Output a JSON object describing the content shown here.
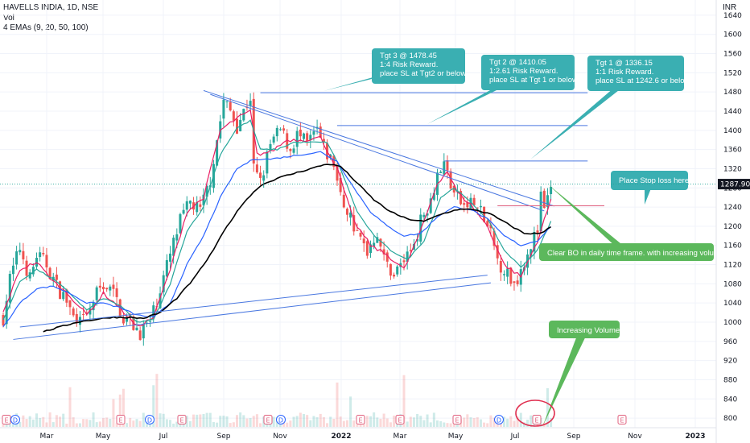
{
  "header": {
    "symbol_line": "HAVELLS INDIA, 1D, NSE",
    "vol_label": "Vol",
    "ema_label": "4 EMAs (9, 20, 50, 100)",
    "currency": "INR"
  },
  "chart_data": {
    "type": "candlestick",
    "symbol": "HAVELLS INDIA",
    "interval": "1D",
    "exchange": "NSE",
    "currency": "INR",
    "y_axis": {
      "range": [
        780,
        1660
      ],
      "ticks": [
        800,
        840,
        880,
        920,
        960,
        1000,
        1040,
        1080,
        1120,
        1160,
        1200,
        1240,
        1280,
        1320,
        1360,
        1400,
        1440,
        1480,
        1520,
        1560,
        1600,
        1640
      ]
    },
    "x_axis": {
      "ticks": [
        "Mar",
        "May",
        "Jul",
        "Sep",
        "Nov",
        "2022",
        "Mar",
        "May",
        "Jul",
        "Sep",
        "Nov",
        "2023"
      ]
    },
    "last_price": "1287.90",
    "close_path": [
      [
        0,
        1010
      ],
      [
        2,
        1090
      ],
      [
        5,
        1155
      ],
      [
        8,
        1090
      ],
      [
        10,
        1140
      ],
      [
        13,
        1120
      ],
      [
        16,
        1075
      ],
      [
        19,
        1045
      ],
      [
        22,
        990
      ],
      [
        25,
        1010
      ],
      [
        28,
        1060
      ],
      [
        30,
        1080
      ],
      [
        33,
        1060
      ],
      [
        36,
        1010
      ],
      [
        38,
        1000
      ],
      [
        41,
        980
      ],
      [
        44,
        1000
      ],
      [
        47,
        1070
      ],
      [
        50,
        1140
      ],
      [
        53,
        1210
      ],
      [
        56,
        1250
      ],
      [
        59,
        1230
      ],
      [
        62,
        1300
      ],
      [
        64,
        1380
      ],
      [
        66,
        1460
      ],
      [
        68,
        1440
      ],
      [
        70,
        1410
      ],
      [
        72,
        1440
      ],
      [
        74,
        1470
      ],
      [
        75,
        1320
      ],
      [
        77,
        1290
      ],
      [
        80,
        1370
      ],
      [
        83,
        1400
      ],
      [
        86,
        1360
      ],
      [
        88,
        1390
      ],
      [
        91,
        1370
      ],
      [
        94,
        1400
      ],
      [
        96,
        1360
      ],
      [
        99,
        1330
      ],
      [
        101,
        1260
      ],
      [
        104,
        1220
      ],
      [
        106,
        1180
      ],
      [
        109,
        1150
      ],
      [
        112,
        1190
      ],
      [
        114,
        1130
      ],
      [
        117,
        1100
      ],
      [
        119,
        1120
      ],
      [
        122,
        1150
      ],
      [
        125,
        1210
      ],
      [
        128,
        1260
      ],
      [
        130,
        1310
      ],
      [
        132,
        1330
      ],
      [
        135,
        1270
      ],
      [
        138,
        1240
      ],
      [
        140,
        1250
      ],
      [
        143,
        1230
      ],
      [
        146,
        1180
      ],
      [
        148,
        1130
      ],
      [
        151,
        1100
      ],
      [
        153,
        1080
      ],
      [
        155,
        1110
      ],
      [
        157,
        1150
      ],
      [
        160,
        1190
      ],
      [
        161,
        1260
      ],
      [
        162,
        1230
      ],
      [
        163,
        1250
      ],
      [
        164,
        1287.9
      ]
    ],
    "emas": [
      {
        "name": "EMA 9",
        "color": "#e91e63",
        "path": [
          [
            0,
            1020
          ],
          [
            5,
            1110
          ],
          [
            10,
            1125
          ],
          [
            15,
            1085
          ],
          [
            20,
            1055
          ],
          [
            25,
            1015
          ],
          [
            30,
            1060
          ],
          [
            35,
            1030
          ],
          [
            40,
            990
          ],
          [
            45,
            1010
          ],
          [
            50,
            1110
          ],
          [
            55,
            1230
          ],
          [
            60,
            1260
          ],
          [
            65,
            1400
          ],
          [
            70,
            1425
          ],
          [
            74,
            1440
          ],
          [
            76,
            1350
          ],
          [
            80,
            1355
          ],
          [
            85,
            1380
          ],
          [
            90,
            1380
          ],
          [
            95,
            1385
          ],
          [
            100,
            1320
          ],
          [
            105,
            1210
          ],
          [
            110,
            1160
          ],
          [
            115,
            1140
          ],
          [
            120,
            1110
          ],
          [
            125,
            1190
          ],
          [
            130,
            1290
          ],
          [
            133,
            1315
          ],
          [
            136,
            1270
          ],
          [
            140,
            1245
          ],
          [
            145,
            1200
          ],
          [
            150,
            1120
          ],
          [
            155,
            1095
          ],
          [
            160,
            1170
          ],
          [
            164,
            1255
          ]
        ]
      },
      {
        "name": "EMA 20",
        "color": "#26a69a",
        "path": [
          [
            0,
            1005
          ],
          [
            5,
            1085
          ],
          [
            10,
            1110
          ],
          [
            15,
            1090
          ],
          [
            20,
            1060
          ],
          [
            25,
            1025
          ],
          [
            30,
            1050
          ],
          [
            35,
            1035
          ],
          [
            40,
            1000
          ],
          [
            45,
            1005
          ],
          [
            50,
            1080
          ],
          [
            55,
            1190
          ],
          [
            60,
            1240
          ],
          [
            65,
            1350
          ],
          [
            70,
            1405
          ],
          [
            74,
            1420
          ],
          [
            77,
            1360
          ],
          [
            82,
            1360
          ],
          [
            87,
            1375
          ],
          [
            92,
            1375
          ],
          [
            97,
            1375
          ],
          [
            101,
            1320
          ],
          [
            106,
            1230
          ],
          [
            111,
            1180
          ],
          [
            116,
            1150
          ],
          [
            121,
            1130
          ],
          [
            126,
            1170
          ],
          [
            131,
            1260
          ],
          [
            135,
            1280
          ],
          [
            140,
            1250
          ],
          [
            145,
            1215
          ],
          [
            150,
            1150
          ],
          [
            155,
            1115
          ],
          [
            160,
            1150
          ],
          [
            164,
            1210
          ]
        ]
      },
      {
        "name": "EMA 50",
        "color": "#2962ff",
        "path": [
          [
            0,
            990
          ],
          [
            5,
            1040
          ],
          [
            10,
            1070
          ],
          [
            15,
            1075
          ],
          [
            20,
            1060
          ],
          [
            25,
            1040
          ],
          [
            30,
            1040
          ],
          [
            35,
            1030
          ],
          [
            40,
            1015
          ],
          [
            45,
            1010
          ],
          [
            50,
            1040
          ],
          [
            55,
            1120
          ],
          [
            60,
            1180
          ],
          [
            65,
            1260
          ],
          [
            70,
            1320
          ],
          [
            75,
            1340
          ],
          [
            80,
            1340
          ],
          [
            85,
            1345
          ],
          [
            90,
            1350
          ],
          [
            95,
            1355
          ],
          [
            100,
            1335
          ],
          [
            105,
            1280
          ],
          [
            110,
            1230
          ],
          [
            115,
            1200
          ],
          [
            120,
            1180
          ],
          [
            125,
            1185
          ],
          [
            130,
            1220
          ],
          [
            135,
            1240
          ],
          [
            140,
            1235
          ],
          [
            145,
            1215
          ],
          [
            150,
            1180
          ],
          [
            155,
            1160
          ],
          [
            160,
            1170
          ],
          [
            164,
            1200
          ]
        ]
      },
      {
        "name": "EMA 100",
        "color": "#000000",
        "path": [
          [
            12,
            980
          ],
          [
            17,
            990
          ],
          [
            22,
            1000
          ],
          [
            27,
            1005
          ],
          [
            32,
            1010
          ],
          [
            37,
            1010
          ],
          [
            42,
            1008
          ],
          [
            47,
            1020
          ],
          [
            52,
            1050
          ],
          [
            57,
            1090
          ],
          [
            62,
            1140
          ],
          [
            67,
            1200
          ],
          [
            72,
            1250
          ],
          [
            77,
            1285
          ],
          [
            82,
            1300
          ],
          [
            87,
            1310
          ],
          [
            92,
            1320
          ],
          [
            97,
            1330
          ],
          [
            101,
            1325
          ],
          [
            106,
            1290
          ],
          [
            111,
            1255
          ],
          [
            116,
            1230
          ],
          [
            121,
            1215
          ],
          [
            126,
            1210
          ],
          [
            131,
            1225
          ],
          [
            136,
            1235
          ],
          [
            141,
            1235
          ],
          [
            146,
            1225
          ],
          [
            151,
            1205
          ],
          [
            156,
            1185
          ],
          [
            161,
            1185
          ],
          [
            164,
            1200
          ]
        ]
      }
    ],
    "trendlines": [
      {
        "name": "lower-1",
        "from": [
          3,
          964
        ],
        "to": [
          146,
          1082
        ],
        "color": "#4a78e0"
      },
      {
        "name": "lower-2",
        "from": [
          5,
          990
        ],
        "to": [
          145,
          1098
        ],
        "color": "#4a78e0"
      },
      {
        "name": "upper-1",
        "from": [
          60,
          1483
        ],
        "to": [
          165,
          1242
        ],
        "color": "#4a78e0"
      },
      {
        "name": "upper-2",
        "from": [
          62,
          1475
        ],
        "to": [
          162,
          1232
        ],
        "color": "#4a78e0"
      },
      {
        "name": "tgt3",
        "price": 1478.45,
        "from": 77,
        "to": 175,
        "color": "#4a78e0"
      },
      {
        "name": "tgt2",
        "price": 1410.05,
        "from": 100,
        "to": 175,
        "color": "#4a78e0"
      },
      {
        "name": "tgt1",
        "price": 1336.15,
        "from": 132,
        "to": 175,
        "color": "#4a78e0"
      },
      {
        "name": "stop",
        "price": 1242.6,
        "from": 148,
        "to": 180,
        "color": "#e0607e"
      }
    ],
    "annotations": [
      {
        "text": "Tgt 3 @ 1478.45\n   1:4 Risk Reward.\n   place SL at Tgt2 or below",
        "color": "#3aafb2"
      },
      {
        "text": "Tgt 2 @ 1410.05\n   1:2.61 Risk Reward.\n   place SL at Tgt 1 or below",
        "color": "#3aafb2"
      },
      {
        "text": "Tgt 1 @ 1336.15\n   1:1 Risk Reward.\n   place SL at 1242.6 or below",
        "color": "#3aafb2"
      },
      {
        "text": "Place Stop loss here",
        "color": "#3aafb2"
      },
      {
        "text": "Clear BO in daily time frame. with increasing volume",
        "color": "#5cb85c"
      },
      {
        "text": "Increasing Volume",
        "color": "#5cb85c"
      }
    ],
    "event_markers": [
      {
        "label": "E",
        "kind": "earnings"
      },
      {
        "label": "D",
        "kind": "dividend"
      },
      {
        "label": "E",
        "kind": "earnings"
      },
      {
        "label": "D",
        "kind": "dividend"
      },
      {
        "label": "E",
        "kind": "earnings"
      },
      {
        "label": "E",
        "kind": "earnings"
      },
      {
        "label": "D",
        "kind": "dividend"
      },
      {
        "label": "E",
        "kind": "earnings"
      },
      {
        "label": "E",
        "kind": "earnings"
      },
      {
        "label": "E",
        "kind": "earnings"
      },
      {
        "label": "D",
        "kind": "dividend"
      },
      {
        "label": "E",
        "kind": "earnings"
      },
      {
        "label": "E",
        "kind": "earnings"
      }
    ],
    "colors": {
      "up": "#26a69a",
      "down": "#ef5350",
      "grid": "#f0f3fa",
      "price_tag": "#131722"
    }
  }
}
